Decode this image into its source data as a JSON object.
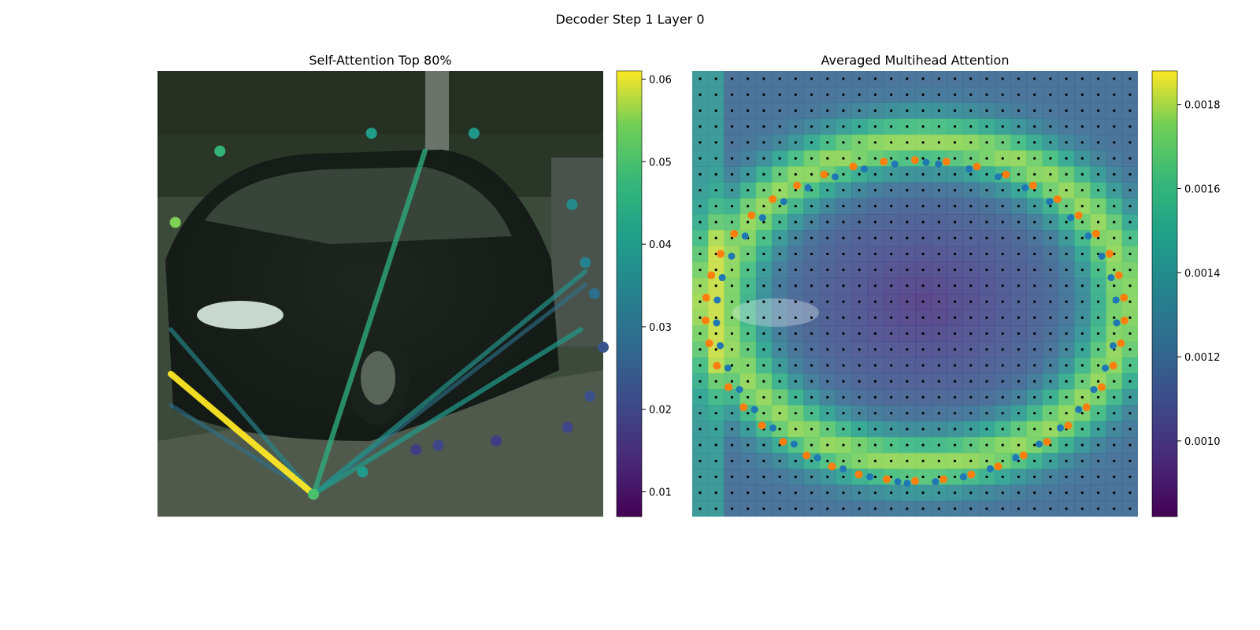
{
  "figure": {
    "suptitle": "Decoder Step 1 Layer 0"
  },
  "chart_data": [
    {
      "type": "scatter",
      "title": "Self-Attention Top 80%",
      "description": "Polygon contour vertices over a car image, colored by attention weight; lines connect the query vertex to its most-attended vertices.",
      "colormap": "viridis",
      "colorbar": {
        "min": 0.007,
        "max": 0.061,
        "ticks": [
          0.01,
          0.02,
          0.03,
          0.04,
          0.05,
          0.06
        ],
        "tick_labels": [
          "0.01",
          "0.02",
          "0.03",
          "0.04",
          "0.05",
          "0.06"
        ]
      },
      "grid": false,
      "points": [
        {
          "x": 0.04,
          "y": 0.34,
          "v": 0.055
        },
        {
          "x": 0.14,
          "y": 0.18,
          "v": 0.047
        },
        {
          "x": 0.48,
          "y": 0.14,
          "v": 0.041
        },
        {
          "x": 0.71,
          "y": 0.14,
          "v": 0.039
        },
        {
          "x": 0.93,
          "y": 0.3,
          "v": 0.036
        },
        {
          "x": 0.96,
          "y": 0.43,
          "v": 0.034
        },
        {
          "x": 0.98,
          "y": 0.5,
          "v": 0.029
        },
        {
          "x": 1.0,
          "y": 0.62,
          "v": 0.023
        },
        {
          "x": 0.97,
          "y": 0.73,
          "v": 0.022
        },
        {
          "x": 0.92,
          "y": 0.8,
          "v": 0.02
        },
        {
          "x": 0.76,
          "y": 0.83,
          "v": 0.018
        },
        {
          "x": 0.63,
          "y": 0.84,
          "v": 0.02
        },
        {
          "x": 0.58,
          "y": 0.85,
          "v": 0.018
        },
        {
          "x": 0.46,
          "y": 0.9,
          "v": 0.04
        },
        {
          "x": 0.35,
          "y": 0.95,
          "v": 0.05
        }
      ],
      "top_links": [
        {
          "from_index": 14,
          "to_point": {
            "x": 0.03,
            "y": 0.68
          },
          "weight": 0.061
        },
        {
          "from_index": 14,
          "to_point": {
            "x": 0.6,
            "y": 0.18
          },
          "weight": 0.045
        },
        {
          "from_index": 14,
          "to_point": {
            "x": 0.95,
            "y": 0.58
          },
          "weight": 0.04
        },
        {
          "from_index": 14,
          "to_point": {
            "x": 0.96,
            "y": 0.45
          },
          "weight": 0.038
        },
        {
          "from_index": 14,
          "to_point": {
            "x": 0.03,
            "y": 0.58
          },
          "weight": 0.035
        },
        {
          "from_index": 14,
          "to_point": {
            "x": 0.03,
            "y": 0.75
          },
          "weight": 0.03
        },
        {
          "from_index": 14,
          "to_point": {
            "x": 0.96,
            "y": 0.48
          },
          "weight": 0.03
        },
        {
          "from_index": 14,
          "to_point": {
            "x": 0.24,
            "y": 0.86
          },
          "weight": 0.025
        }
      ]
    },
    {
      "type": "heatmap",
      "title": "Averaged Multihead Attention",
      "description": "Averaged multihead attention heatmap over the image with reference grid points; orange and blue dots mark predicted and ground-truth contour vertices.",
      "colormap": "viridis",
      "colorbar": {
        "min": 0.00082,
        "max": 0.00188,
        "ticks": [
          0.001,
          0.0012,
          0.0014,
          0.0016,
          0.0018
        ],
        "tick_labels": [
          "0.0010",
          "0.0012",
          "0.0014",
          "0.0016",
          "0.0018"
        ]
      },
      "grid": false,
      "grid_points_shape": [
        28,
        28
      ],
      "series": [
        {
          "name": "",
          "color": "#ff7f0e"
        },
        {
          "name": "",
          "color": "#1f77b4"
        }
      ]
    }
  ]
}
